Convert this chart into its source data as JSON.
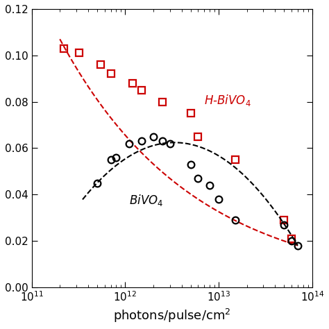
{
  "hbivo4_x": [
    220000000000.0,
    320000000000.0,
    550000000000.0,
    700000000000.0,
    1200000000000.0,
    1500000000000.0,
    2500000000000.0,
    5000000000000.0,
    6000000000000.0,
    15000000000000.0,
    50000000000000.0,
    60000000000000.0
  ],
  "hbivo4_y": [
    0.103,
    0.101,
    0.096,
    0.092,
    0.088,
    0.085,
    0.08,
    0.075,
    0.065,
    0.055,
    0.029,
    0.021
  ],
  "bivo4_x": [
    500000000000.0,
    700000000000.0,
    800000000000.0,
    1100000000000.0,
    1500000000000.0,
    2000000000000.0,
    2500000000000.0,
    3000000000000.0,
    5000000000000.0,
    6000000000000.0,
    8000000000000.0,
    10000000000000.0,
    15000000000000.0,
    50000000000000.0,
    60000000000000.0,
    70000000000000.0
  ],
  "bivo4_y": [
    0.045,
    0.055,
    0.056,
    0.062,
    0.063,
    0.065,
    0.063,
    0.062,
    0.053,
    0.047,
    0.044,
    0.038,
    0.029,
    0.027,
    0.02,
    0.018
  ],
  "xlabel": "photons/pulse/cm$^2$",
  "ylabel_ticks": [
    "0.00",
    "0.02",
    "0.04",
    "0.06",
    "0.08",
    "0.10",
    "0.12"
  ],
  "ylim": [
    0.0,
    0.12
  ],
  "xlim": [
    100000000000.0,
    100000000000000.0
  ],
  "label_hbivo4": "H-BiVO$_4$",
  "label_bivo4": "BiVO$_4$",
  "color_red": "#cc0000",
  "color_black": "#000000",
  "background_color": "#ffffff",
  "red_fit_x1": 200000000000.0,
  "red_fit_y1": 0.107,
  "red_fit_x2": 70000000000000.0,
  "red_fit_y2": 0.018,
  "blk_fit_pt1_x": 450000000000.0,
  "blk_fit_pt1_y": 0.043,
  "blk_fit_pt2_x": 2500000000000.0,
  "blk_fit_pt2_y": 0.062,
  "blk_fit_pt3_x": 70000000000000.0,
  "blk_fit_pt3_y": 0.018
}
